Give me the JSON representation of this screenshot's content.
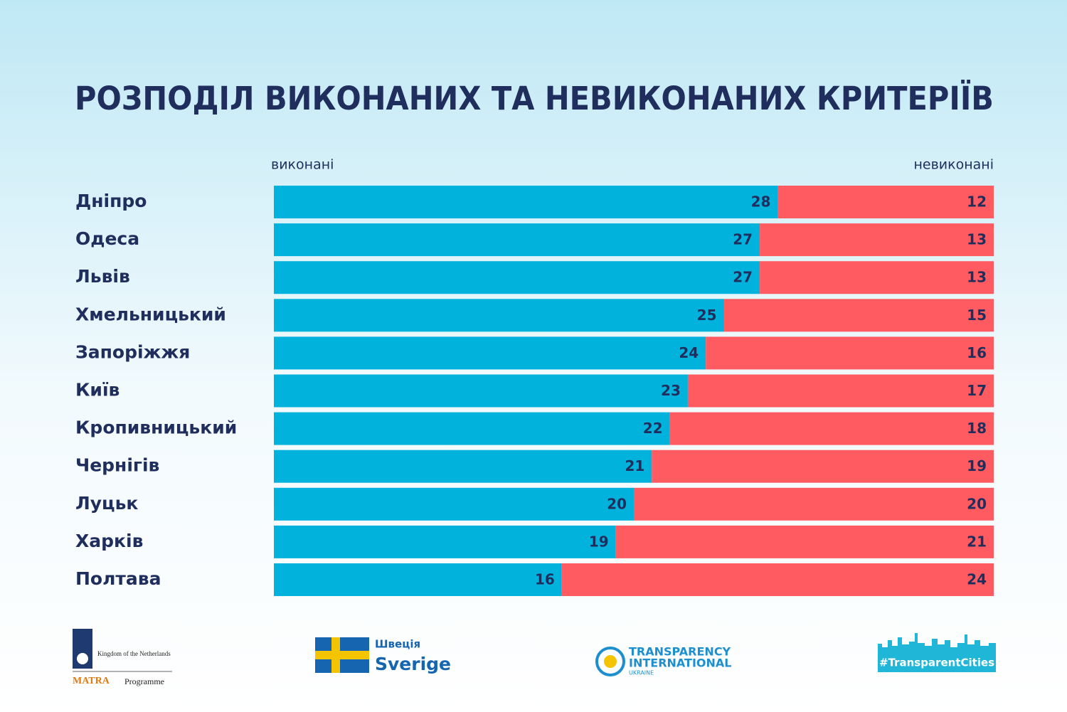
{
  "chart_data": {
    "type": "stacked-bar-horizontal",
    "title": "РОЗПОДІЛ ВИКОНАНИХ ТА НЕВИКОНАНИХ КРИТЕРІЇВ",
    "categories": [
      "Дніпро",
      "Одеса",
      "Львів",
      "Хмельницький",
      "Запоріжжя",
      "Київ",
      "Кропивницький",
      "Чернігів",
      "Луцьк",
      "Харків",
      "Полтава"
    ],
    "series": [
      {
        "name": "виконані",
        "color": "#00b2dc",
        "values": [
          28,
          27,
          27,
          25,
          24,
          23,
          22,
          21,
          20,
          19,
          16
        ]
      },
      {
        "name": "невиконані",
        "color": "#ff5b61",
        "values": [
          12,
          13,
          13,
          15,
          16,
          17,
          18,
          19,
          20,
          21,
          24
        ]
      }
    ],
    "xlim": [
      0,
      40
    ]
  },
  "logos": {
    "netherlands": "Kingdom of the Netherlands",
    "matra": "MATRA",
    "programme": "Programme",
    "sweden_ua": "Швеція",
    "sweden": "Sverige",
    "ti_line1": "TRANSPARENCY",
    "ti_line2": "INTERNATIONAL",
    "ti_line3": "UKRAINE",
    "hashtag": "#TransparentCities"
  }
}
